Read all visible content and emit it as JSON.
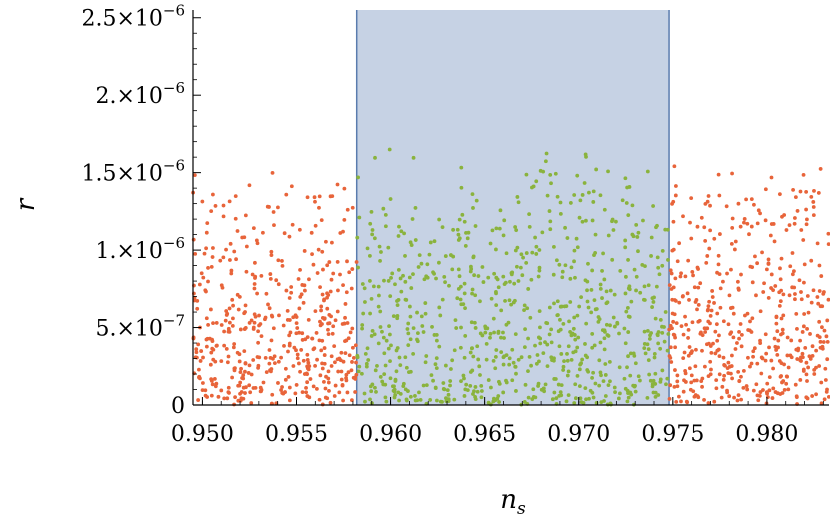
{
  "chart_data": {
    "type": "scatter",
    "xlabel": "n",
    "xlabel_sub": "s",
    "ylabel": "r",
    "xlim": [
      0.9495,
      0.9833
    ],
    "ylim": [
      0,
      2.55e-06
    ],
    "x_ticks": [
      {
        "value": 0.95,
        "label": "0.950"
      },
      {
        "value": 0.955,
        "label": "0.955"
      },
      {
        "value": 0.96,
        "label": "0.960"
      },
      {
        "value": 0.965,
        "label": "0.965"
      },
      {
        "value": 0.97,
        "label": "0.970"
      },
      {
        "value": 0.975,
        "label": "0.975"
      },
      {
        "value": 0.98,
        "label": "0.980"
      }
    ],
    "y_ticks": [
      {
        "value": 0,
        "mantissa": "0",
        "exponent": ""
      },
      {
        "value": 5e-07,
        "mantissa": "5.×10",
        "exponent": "−7"
      },
      {
        "value": 1e-06,
        "mantissa": "1.×10",
        "exponent": "−6"
      },
      {
        "value": 1.5e-06,
        "mantissa": "1.5×10",
        "exponent": "−6"
      },
      {
        "value": 2e-06,
        "mantissa": "2.×10",
        "exponent": "−6"
      },
      {
        "value": 2.5e-06,
        "mantissa": "2.5×10",
        "exponent": "−6"
      }
    ],
    "shaded_band": {
      "x_start": 0.9582,
      "x_end": 0.9748,
      "color": "#c6d2e4",
      "edge_color": "#5a7cae"
    },
    "series": [
      {
        "points": "outside band",
        "x_range": [
          0.9495,
          0.9582
        ],
        "y_range": [
          0,
          1.57e-06
        ],
        "count": 480,
        "color": "#e8643a"
      },
      {
        "points": "inside band",
        "x_range": [
          0.9582,
          0.9748
        ],
        "y_range": [
          0,
          1.72e-06
        ],
        "count": 800,
        "color": "#8ab33d"
      },
      {
        "points": "outside band",
        "x_range": [
          0.9748,
          0.9833
        ],
        "y_range": [
          0,
          1.65e-06
        ],
        "count": 480,
        "color": "#e8643a"
      }
    ]
  }
}
